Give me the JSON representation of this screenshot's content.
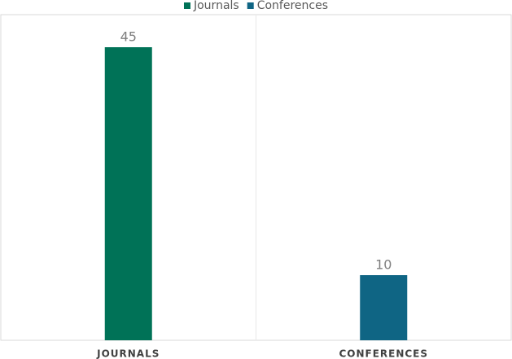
{
  "chart_data": {
    "type": "bar",
    "categories": [
      "JOURNALS",
      "CONFERENCES"
    ],
    "series": [
      {
        "name": "Journals",
        "color": "#007257",
        "values": [
          45,
          null
        ]
      },
      {
        "name": "Conferences",
        "color": "#0f6584",
        "values": [
          null,
          10
        ]
      }
    ],
    "ylim": [
      0,
      50
    ],
    "legend": "top"
  }
}
